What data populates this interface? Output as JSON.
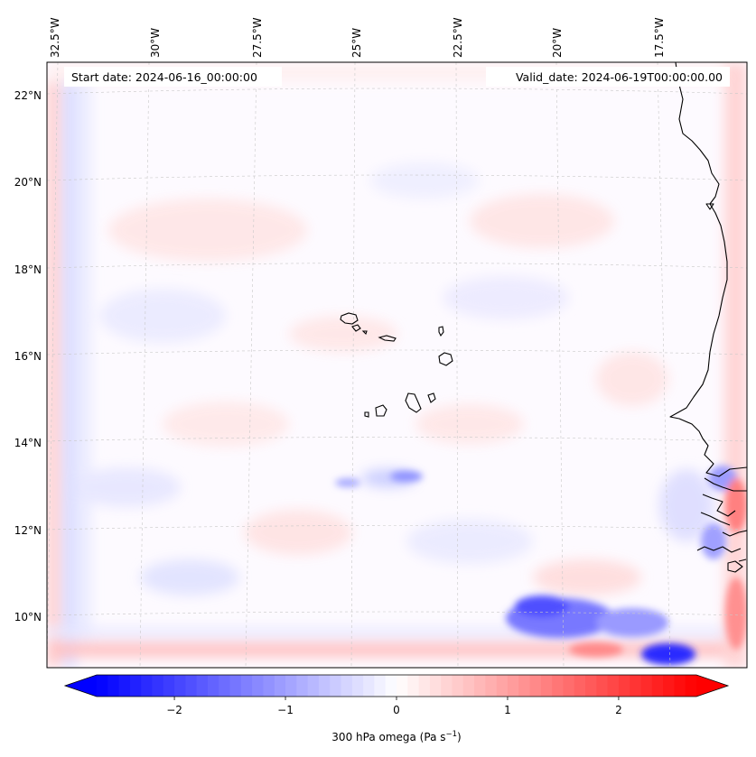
{
  "map": {
    "start_date": "Start date: 2024-06-16_00:00:00",
    "valid_date": "Valid_date: 2024-06-19T00:00:00.00",
    "lon_labels": [
      "32.5°W",
      "30°W",
      "27.5°W",
      "25°W",
      "22.5°W",
      "20°W",
      "17.5°W"
    ],
    "lat_labels": [
      "22°N",
      "20°N",
      "18°N",
      "16°N",
      "14°N",
      "12°N",
      "10°N"
    ],
    "features": [
      "cape-verde-islands",
      "west-africa-coastline"
    ],
    "field": "300 hPa omega",
    "colors": {
      "negative_max": "#0000ff",
      "neutral": "#ffffff",
      "positive_max": "#ff0000",
      "coastline": "#000000",
      "gridline": "#c8c8c8"
    }
  },
  "colorbar": {
    "label_base": "300 hPa omega (Pa s",
    "label_exp": "−1",
    "label_close": ")",
    "range": [
      -2.7,
      2.7
    ],
    "ticks": [
      {
        "value": -2,
        "label": "−2"
      },
      {
        "value": -1,
        "label": "−1"
      },
      {
        "value": 0,
        "label": "0"
      },
      {
        "value": 1,
        "label": "1"
      },
      {
        "value": 2,
        "label": "2"
      }
    ],
    "colormap": "bwr",
    "extend": "both"
  }
}
